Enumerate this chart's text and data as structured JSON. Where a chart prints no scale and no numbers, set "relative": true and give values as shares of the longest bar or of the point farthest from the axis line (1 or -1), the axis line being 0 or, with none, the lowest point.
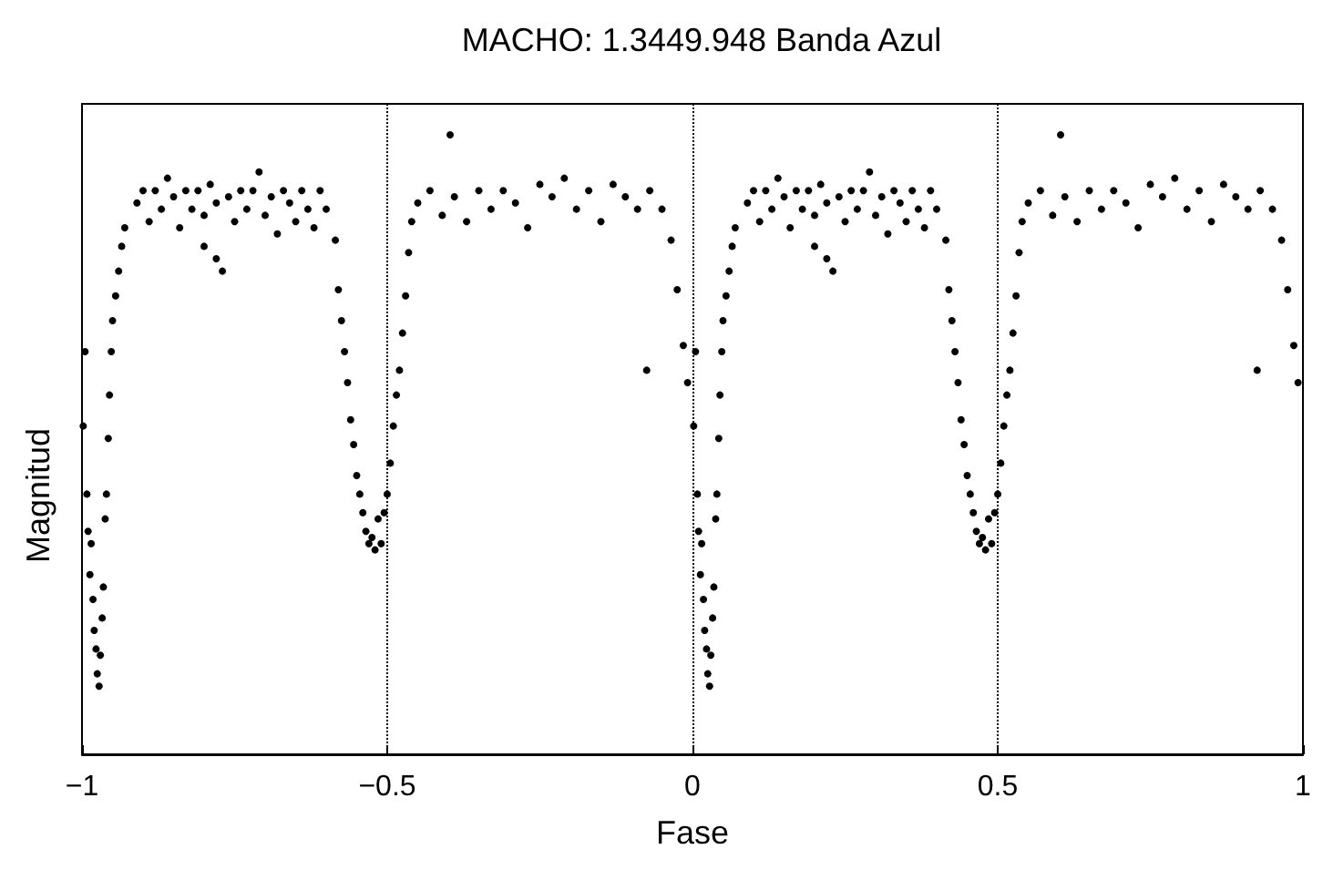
{
  "chart_data": {
    "type": "scatter",
    "title": "MACHO: 1.3449.948 Banda Azul",
    "xlabel": "Fase",
    "ylabel": "Magnitud",
    "relative": true,
    "grid": false,
    "marker": "circle",
    "xlim": [
      -1,
      1
    ],
    "xticks": [
      -1,
      -0.5,
      0,
      0.5,
      1
    ],
    "ref_lines": [
      {
        "axis": "x",
        "value": -0.5,
        "color": "#000000",
        "line_style": "dotted"
      },
      {
        "axis": "x",
        "value": 0,
        "color": "#000000",
        "line_style": "dotted"
      },
      {
        "axis": "x",
        "value": 0.5,
        "color": "#000000",
        "line_style": "dotted"
      }
    ],
    "series": [
      {
        "color": "#000000",
        "x": [
          -0.998,
          -0.995,
          -0.992,
          -0.99,
          -0.987,
          -0.985,
          -0.982,
          -0.98,
          -0.977,
          -0.975,
          -0.972,
          -0.97,
          -0.967,
          -0.965,
          -0.962,
          -0.96,
          -0.957,
          -0.955,
          -0.952,
          -0.95,
          -0.945,
          -0.94,
          -0.935,
          -0.93,
          -0.91,
          -0.9,
          -0.89,
          -0.88,
          -0.87,
          -0.86,
          -0.85,
          -0.84,
          -0.83,
          -0.82,
          -0.81,
          -0.8,
          -0.8,
          -0.79,
          -0.78,
          -0.78,
          -0.77,
          -0.76,
          -0.75,
          -0.74,
          -0.73,
          -0.72,
          -0.71,
          -0.7,
          -0.69,
          -0.68,
          -0.67,
          -0.66,
          -0.65,
          -0.64,
          -0.63,
          -0.62,
          -0.61,
          -0.6,
          -0.585,
          -0.58,
          -0.575,
          -0.57,
          -0.565,
          -0.56,
          -0.555,
          -0.55,
          -0.545,
          -0.54,
          -0.535,
          -0.53,
          -0.525,
          -0.52,
          -0.515,
          -0.51,
          -0.505,
          -0.5,
          -0.495,
          -0.49,
          -0.485,
          -0.48,
          -0.475,
          -0.47,
          -0.465,
          -0.46,
          -0.45,
          -0.43,
          -0.41,
          -0.397,
          -0.39,
          -0.37,
          -0.35,
          -0.33,
          -0.31,
          -0.29,
          -0.27,
          -0.25,
          -0.23,
          -0.21,
          -0.19,
          -0.17,
          -0.15,
          -0.13,
          -0.11,
          -0.09,
          -0.075,
          -0.07,
          -0.05,
          -0.035,
          -0.025,
          -0.015,
          -0.008
        ],
        "values": [
          0.53,
          0.65,
          0.42,
          0.36,
          0.29,
          0.34,
          0.25,
          0.2,
          0.17,
          0.13,
          0.11,
          0.16,
          0.22,
          0.27,
          0.38,
          0.42,
          0.51,
          0.58,
          0.65,
          0.7,
          0.74,
          0.78,
          0.82,
          0.85,
          0.89,
          0.91,
          0.86,
          0.91,
          0.88,
          0.93,
          0.9,
          0.85,
          0.91,
          0.88,
          0.91,
          0.87,
          0.82,
          0.92,
          0.89,
          0.8,
          0.78,
          0.9,
          0.86,
          0.91,
          0.88,
          0.91,
          0.94,
          0.87,
          0.9,
          0.84,
          0.91,
          0.89,
          0.86,
          0.91,
          0.88,
          0.85,
          0.91,
          0.88,
          0.83,
          0.75,
          0.7,
          0.65,
          0.6,
          0.54,
          0.5,
          0.45,
          0.42,
          0.39,
          0.36,
          0.34,
          0.35,
          0.33,
          0.38,
          0.34,
          0.39,
          0.42,
          0.47,
          0.53,
          0.58,
          0.62,
          0.68,
          0.74,
          0.81,
          0.86,
          0.89,
          0.91,
          0.87,
          1,
          0.9,
          0.86,
          0.91,
          0.88,
          0.91,
          0.89,
          0.85,
          0.92,
          0.9,
          0.93,
          0.88,
          0.91,
          0.86,
          0.92,
          0.9,
          0.88,
          0.62,
          0.91,
          0.88,
          0.83,
          0.75,
          0.66,
          0.6
        ]
      },
      {
        "color": "#000000",
        "x": [
          0.002,
          0.005,
          0.008,
          0.01,
          0.013,
          0.015,
          0.018,
          0.02,
          0.023,
          0.025,
          0.028,
          0.03,
          0.033,
          0.035,
          0.038,
          0.04,
          0.043,
          0.045,
          0.048,
          0.05,
          0.055,
          0.06,
          0.065,
          0.07,
          0.09,
          0.1,
          0.11,
          0.12,
          0.13,
          0.14,
          0.15,
          0.16,
          0.17,
          0.18,
          0.19,
          0.2,
          0.2,
          0.21,
          0.22,
          0.22,
          0.23,
          0.24,
          0.25,
          0.26,
          0.27,
          0.28,
          0.29,
          0.3,
          0.31,
          0.32,
          0.33,
          0.34,
          0.35,
          0.36,
          0.37,
          0.38,
          0.39,
          0.4,
          0.415,
          0.42,
          0.425,
          0.43,
          0.435,
          0.44,
          0.445,
          0.45,
          0.455,
          0.46,
          0.465,
          0.47,
          0.475,
          0.48,
          0.485,
          0.49,
          0.495,
          0.5,
          0.505,
          0.51,
          0.515,
          0.52,
          0.525,
          0.53,
          0.535,
          0.54,
          0.55,
          0.57,
          0.59,
          0.603,
          0.61,
          0.63,
          0.65,
          0.67,
          0.69,
          0.71,
          0.73,
          0.75,
          0.77,
          0.79,
          0.81,
          0.83,
          0.85,
          0.87,
          0.89,
          0.91,
          0.925,
          0.93,
          0.95,
          0.965,
          0.975,
          0.985,
          0.992
        ],
        "values": [
          0.53,
          0.65,
          0.42,
          0.36,
          0.29,
          0.34,
          0.25,
          0.2,
          0.17,
          0.13,
          0.11,
          0.16,
          0.22,
          0.27,
          0.38,
          0.42,
          0.51,
          0.58,
          0.65,
          0.7,
          0.74,
          0.78,
          0.82,
          0.85,
          0.89,
          0.91,
          0.86,
          0.91,
          0.88,
          0.93,
          0.9,
          0.85,
          0.91,
          0.88,
          0.91,
          0.87,
          0.82,
          0.92,
          0.89,
          0.8,
          0.78,
          0.9,
          0.86,
          0.91,
          0.88,
          0.91,
          0.94,
          0.87,
          0.9,
          0.84,
          0.91,
          0.89,
          0.86,
          0.91,
          0.88,
          0.85,
          0.91,
          0.88,
          0.83,
          0.75,
          0.7,
          0.65,
          0.6,
          0.54,
          0.5,
          0.45,
          0.42,
          0.39,
          0.36,
          0.34,
          0.35,
          0.33,
          0.38,
          0.34,
          0.39,
          0.42,
          0.47,
          0.53,
          0.58,
          0.62,
          0.68,
          0.74,
          0.81,
          0.86,
          0.89,
          0.91,
          0.87,
          1,
          0.9,
          0.86,
          0.91,
          0.88,
          0.91,
          0.89,
          0.85,
          0.92,
          0.9,
          0.93,
          0.88,
          0.91,
          0.86,
          0.92,
          0.9,
          0.88,
          0.62,
          0.91,
          0.88,
          0.83,
          0.75,
          0.66,
          0.6
        ]
      }
    ]
  }
}
